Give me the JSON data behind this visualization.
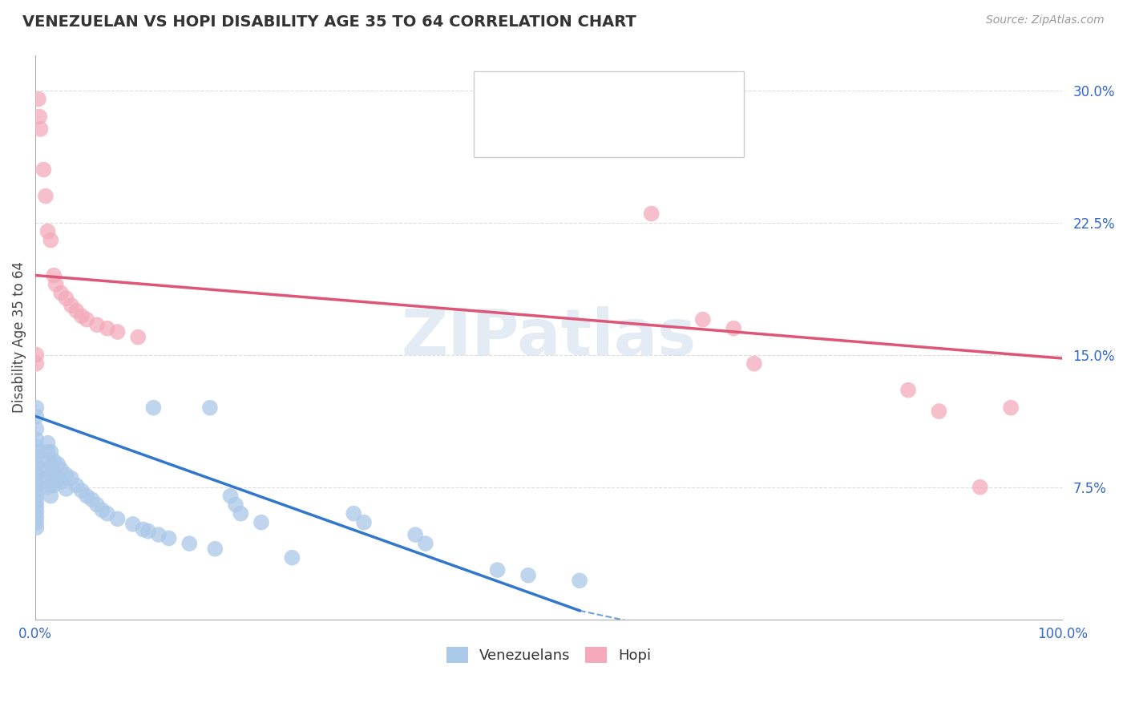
{
  "title": "VENEZUELAN VS HOPI DISABILITY AGE 35 TO 64 CORRELATION CHART",
  "source": "Source: ZipAtlas.com",
  "ylabel": "Disability Age 35 to 64",
  "xlim": [
    0.0,
    1.0
  ],
  "ylim": [
    0.0,
    0.32
  ],
  "background_color": "#ffffff",
  "grid_color": "#dddddd",
  "venezuelan_color": "#aac8e8",
  "hopi_color": "#f4aabb",
  "venezuelan_line_color": "#3377cc",
  "hopi_line_color": "#dd5577",
  "legend_text_color": "#3366cc",
  "watermark": "ZIPatlas",
  "venezuelan_points": [
    [
      0.001,
      0.12
    ],
    [
      0.001,
      0.115
    ],
    [
      0.001,
      0.108
    ],
    [
      0.001,
      0.102
    ],
    [
      0.001,
      0.098
    ],
    [
      0.001,
      0.095
    ],
    [
      0.001,
      0.092
    ],
    [
      0.001,
      0.088
    ],
    [
      0.001,
      0.085
    ],
    [
      0.001,
      0.082
    ],
    [
      0.001,
      0.079
    ],
    [
      0.001,
      0.076
    ],
    [
      0.001,
      0.073
    ],
    [
      0.001,
      0.07
    ],
    [
      0.001,
      0.067
    ],
    [
      0.001,
      0.064
    ],
    [
      0.001,
      0.061
    ],
    [
      0.001,
      0.058
    ],
    [
      0.001,
      0.055
    ],
    [
      0.001,
      0.052
    ],
    [
      0.012,
      0.1
    ],
    [
      0.012,
      0.095
    ],
    [
      0.012,
      0.09
    ],
    [
      0.012,
      0.085
    ],
    [
      0.012,
      0.08
    ],
    [
      0.012,
      0.075
    ],
    [
      0.015,
      0.095
    ],
    [
      0.015,
      0.088
    ],
    [
      0.015,
      0.082
    ],
    [
      0.015,
      0.076
    ],
    [
      0.015,
      0.07
    ],
    [
      0.018,
      0.09
    ],
    [
      0.018,
      0.083
    ],
    [
      0.018,
      0.076
    ],
    [
      0.022,
      0.088
    ],
    [
      0.022,
      0.08
    ],
    [
      0.025,
      0.085
    ],
    [
      0.025,
      0.078
    ],
    [
      0.03,
      0.082
    ],
    [
      0.03,
      0.074
    ],
    [
      0.035,
      0.08
    ],
    [
      0.04,
      0.076
    ],
    [
      0.045,
      0.073
    ],
    [
      0.05,
      0.07
    ],
    [
      0.055,
      0.068
    ],
    [
      0.06,
      0.065
    ],
    [
      0.065,
      0.062
    ],
    [
      0.07,
      0.06
    ],
    [
      0.08,
      0.057
    ],
    [
      0.095,
      0.054
    ],
    [
      0.105,
      0.051
    ],
    [
      0.11,
      0.05
    ],
    [
      0.115,
      0.12
    ],
    [
      0.12,
      0.048
    ],
    [
      0.13,
      0.046
    ],
    [
      0.15,
      0.043
    ],
    [
      0.17,
      0.12
    ],
    [
      0.175,
      0.04
    ],
    [
      0.19,
      0.07
    ],
    [
      0.195,
      0.065
    ],
    [
      0.2,
      0.06
    ],
    [
      0.22,
      0.055
    ],
    [
      0.25,
      0.035
    ],
    [
      0.31,
      0.06
    ],
    [
      0.32,
      0.055
    ],
    [
      0.37,
      0.048
    ],
    [
      0.38,
      0.043
    ],
    [
      0.45,
      0.028
    ],
    [
      0.48,
      0.025
    ],
    [
      0.53,
      0.022
    ]
  ],
  "hopi_points": [
    [
      0.003,
      0.295
    ],
    [
      0.004,
      0.285
    ],
    [
      0.005,
      0.278
    ],
    [
      0.008,
      0.255
    ],
    [
      0.01,
      0.24
    ],
    [
      0.012,
      0.22
    ],
    [
      0.015,
      0.215
    ],
    [
      0.018,
      0.195
    ],
    [
      0.02,
      0.19
    ],
    [
      0.025,
      0.185
    ],
    [
      0.03,
      0.182
    ],
    [
      0.035,
      0.178
    ],
    [
      0.04,
      0.175
    ],
    [
      0.045,
      0.172
    ],
    [
      0.05,
      0.17
    ],
    [
      0.06,
      0.167
    ],
    [
      0.07,
      0.165
    ],
    [
      0.08,
      0.163
    ],
    [
      0.1,
      0.16
    ],
    [
      0.001,
      0.15
    ],
    [
      0.001,
      0.145
    ],
    [
      0.6,
      0.23
    ],
    [
      0.65,
      0.17
    ],
    [
      0.68,
      0.165
    ],
    [
      0.7,
      0.145
    ],
    [
      0.85,
      0.13
    ],
    [
      0.88,
      0.118
    ],
    [
      0.92,
      0.075
    ],
    [
      0.95,
      0.12
    ]
  ]
}
